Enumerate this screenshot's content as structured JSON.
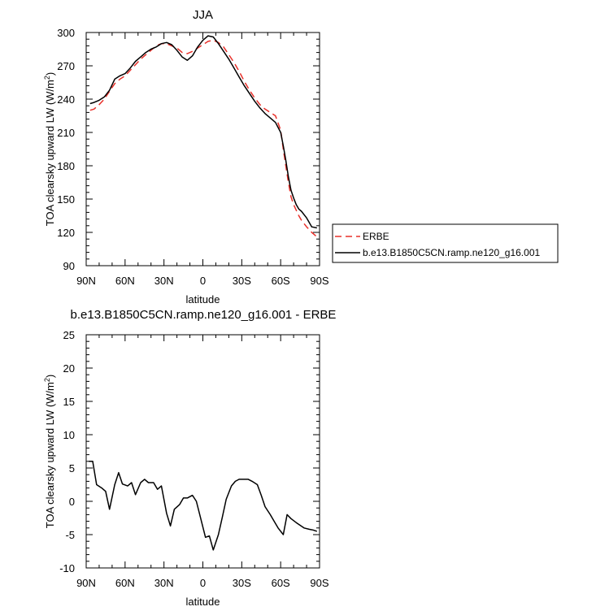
{
  "chart_data": [
    {
      "type": "line",
      "title": "JJA",
      "xlabel": "latitude",
      "ylabel": "TOA clearsky upward LW (W/m²)",
      "ylabel_base": "TOA clearsky upward LW (W/m",
      "ylabel_sup": "2",
      "ylabel_end": ")",
      "xlim": [
        90,
        -90
      ],
      "ylim": [
        90,
        300
      ],
      "xticks": [
        90,
        60,
        30,
        0,
        -30,
        -60,
        -90
      ],
      "xtick_labels": [
        "90N",
        "60N",
        "30N",
        "0",
        "30S",
        "60S",
        "90S"
      ],
      "yticks": [
        90,
        120,
        150,
        180,
        210,
        240,
        270,
        300
      ],
      "ytick_labels": [
        "90",
        "120",
        "150",
        "180",
        "210",
        "240",
        "270",
        "300"
      ],
      "legend": "right",
      "series": [
        {
          "name": "ERBE",
          "color": "#e8302a",
          "dash": "dashed",
          "x": [
            87,
            84,
            80,
            76,
            72,
            68,
            64,
            60,
            56,
            52,
            48,
            44,
            40,
            36,
            32,
            28,
            24,
            20,
            16,
            12,
            8,
            4,
            0,
            -4,
            -8,
            -12,
            -16,
            -20,
            -24,
            -28,
            -32,
            -36,
            -40,
            -44,
            -48,
            -52,
            -56,
            -60,
            -62,
            -64,
            -66,
            -68,
            -70,
            -72,
            -74,
            -76,
            -80,
            -84,
            -88
          ],
          "values": [
            230,
            231,
            235,
            240,
            247,
            254,
            258,
            261,
            266,
            271,
            276,
            280,
            284,
            288,
            290,
            290,
            288,
            286,
            282,
            281,
            283,
            286,
            289,
            292,
            293,
            291,
            287,
            280,
            273,
            265,
            256,
            248,
            241,
            235,
            231,
            228,
            225,
            212,
            195,
            180,
            165,
            152,
            145,
            140,
            135,
            131,
            125,
            120,
            116
          ]
        },
        {
          "name": "b.e13.B1850C5CN.ramp.ne120_g16.001",
          "color": "#000000",
          "dash": "solid",
          "x": [
            87,
            84,
            80,
            76,
            72,
            68,
            64,
            60,
            56,
            52,
            48,
            44,
            40,
            36,
            32,
            28,
            24,
            20,
            16,
            12,
            8,
            4,
            0,
            -4,
            -8,
            -12,
            -16,
            -20,
            -24,
            -28,
            -32,
            -36,
            -40,
            -44,
            -48,
            -52,
            -56,
            -60,
            -62,
            -64,
            -66,
            -68,
            -70,
            -72,
            -74,
            -76,
            -80,
            -84,
            -88
          ],
          "values": [
            236,
            237,
            239,
            242,
            248,
            258,
            261,
            263,
            268,
            274,
            278,
            282,
            285,
            287,
            290,
            291,
            289,
            284,
            278,
            275,
            279,
            287,
            293,
            297,
            296,
            290,
            283,
            276,
            268,
            260,
            252,
            245,
            238,
            232,
            227,
            223,
            219,
            210,
            198,
            185,
            170,
            158,
            151,
            145,
            141,
            139,
            133,
            125,
            124
          ]
        }
      ]
    },
    {
      "type": "line",
      "title": "b.e13.B1850C5CN.ramp.ne120_g16.001 - ERBE",
      "xlabel": "latitude",
      "ylabel": "TOA clearsky upward LW (W/m²)",
      "ylabel_base": "TOA clearsky upward LW (W/m",
      "ylabel_sup": "2",
      "ylabel_end": ")",
      "xlim": [
        90,
        -90
      ],
      "ylim": [
        -10,
        25
      ],
      "xticks": [
        90,
        60,
        30,
        0,
        -30,
        -60,
        -90
      ],
      "xtick_labels": [
        "90N",
        "60N",
        "30N",
        "0",
        "30S",
        "60S",
        "90S"
      ],
      "yticks": [
        -10,
        -5,
        0,
        5,
        10,
        15,
        20,
        25
      ],
      "ytick_labels": [
        "-10",
        "-5",
        "0",
        "5",
        "10",
        "15",
        "20",
        "25"
      ],
      "series": [
        {
          "color": "#000000",
          "dash": "solid",
          "x": [
            88,
            85,
            82,
            78,
            75,
            72,
            68,
            65,
            62,
            58,
            55,
            52,
            48,
            45,
            42,
            38,
            35,
            32,
            28,
            25,
            22,
            18,
            15,
            12,
            8,
            5,
            2,
            -2,
            -5,
            -8,
            -12,
            -15,
            -18,
            -22,
            -25,
            -28,
            -32,
            -35,
            -38,
            -42,
            -45,
            -48,
            -52,
            -55,
            -58,
            -62,
            -65,
            -68,
            -72,
            -75,
            -78,
            -82,
            -85,
            -88
          ],
          "values": [
            6.0,
            6.0,
            2.5,
            2.0,
            1.5,
            -1.2,
            2.5,
            4.3,
            2.6,
            2.3,
            2.8,
            1.0,
            2.8,
            3.3,
            2.8,
            2.8,
            1.8,
            2.3,
            -1.8,
            -3.7,
            -1.2,
            -0.5,
            0.5,
            0.5,
            0.9,
            0.0,
            -2.3,
            -5.4,
            -5.2,
            -7.3,
            -5.0,
            -2.4,
            0.3,
            2.3,
            3.0,
            3.3,
            3.3,
            3.3,
            3.0,
            2.5,
            0.9,
            -0.8,
            -2.0,
            -3.0,
            -4.0,
            -5.0,
            -2.0,
            -2.6,
            -3.2,
            -3.6,
            -4.0,
            -4.2,
            -4.3,
            -4.5
          ]
        }
      ]
    }
  ]
}
